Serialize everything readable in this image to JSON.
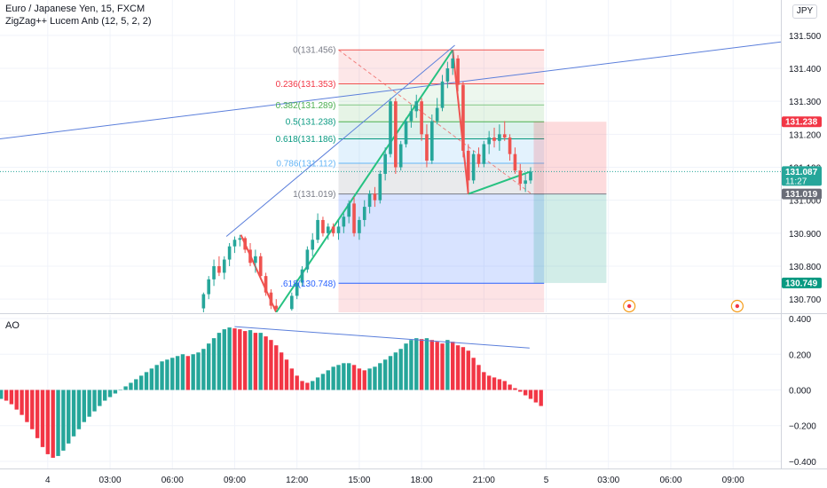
{
  "header": {
    "title": "Euro / Japanese Yen, 15, FXCM",
    "indicator": "ZigZag++ Lucem Anb (12, 5, 2, 2)",
    "currency": "JPY",
    "ao_label": "AO"
  },
  "chart_data": [
    {
      "type": "candlestick",
      "title": "Euro / Japanese Yen, 15, FXCM",
      "ylim": [
        130.66,
        131.54
      ],
      "y_ticks": [
        131.5,
        131.4,
        131.3,
        131.2,
        131.1,
        131.0,
        130.9,
        130.8,
        130.7
      ],
      "y_tick_labels": [
        "131.500",
        "131.400",
        "131.300",
        "131.200",
        "131.100",
        "131.000",
        "130.900",
        "130.800",
        "130.700"
      ],
      "x_ticks": [
        {
          "t": 0,
          "label": "4"
        },
        {
          "t": 3,
          "label": "03:00"
        },
        {
          "t": 6,
          "label": "06:00"
        },
        {
          "t": 9,
          "label": "09:00"
        },
        {
          "t": 12,
          "label": "12:00"
        },
        {
          "t": 15,
          "label": "15:00"
        },
        {
          "t": 18,
          "label": "18:00"
        },
        {
          "t": 21,
          "label": "21:00"
        },
        {
          "t": 24,
          "label": "5"
        },
        {
          "t": 27,
          "label": "03:00"
        },
        {
          "t": 30,
          "label": "06:00"
        },
        {
          "t": 33,
          "label": "09:00"
        }
      ],
      "xlim": [
        -2.3,
        35.3
      ],
      "candles": [
        {
          "t": 7.5,
          "o": 130.672,
          "h": 130.72,
          "l": 130.66,
          "c": 130.715
        },
        {
          "t": 7.75,
          "o": 130.715,
          "h": 130.77,
          "l": 130.7,
          "c": 130.76
        },
        {
          "t": 8.0,
          "o": 130.76,
          "h": 130.82,
          "l": 130.74,
          "c": 130.8
        },
        {
          "t": 8.25,
          "o": 130.8,
          "h": 130.83,
          "l": 130.77,
          "c": 130.78
        },
        {
          "t": 8.5,
          "o": 130.78,
          "h": 130.83,
          "l": 130.76,
          "c": 130.82
        },
        {
          "t": 8.75,
          "o": 130.82,
          "h": 130.87,
          "l": 130.8,
          "c": 130.86
        },
        {
          "t": 9.0,
          "o": 130.86,
          "h": 130.89,
          "l": 130.84,
          "c": 130.88
        },
        {
          "t": 9.25,
          "o": 130.88,
          "h": 130.895,
          "l": 130.86,
          "c": 130.885
        },
        {
          "t": 9.5,
          "o": 130.885,
          "h": 130.89,
          "l": 130.84,
          "c": 130.85
        },
        {
          "t": 9.75,
          "o": 130.85,
          "h": 130.87,
          "l": 130.8,
          "c": 130.81
        },
        {
          "t": 10.0,
          "o": 130.81,
          "h": 130.85,
          "l": 130.78,
          "c": 130.83
        },
        {
          "t": 10.25,
          "o": 130.83,
          "h": 130.84,
          "l": 130.76,
          "c": 130.77
        },
        {
          "t": 10.5,
          "o": 130.77,
          "h": 130.78,
          "l": 130.71,
          "c": 130.72
        },
        {
          "t": 10.75,
          "o": 130.72,
          "h": 130.73,
          "l": 130.67,
          "c": 130.68
        },
        {
          "t": 11.0,
          "o": 130.68,
          "h": 130.7,
          "l": 130.665,
          "c": 130.67
        },
        {
          "t": 11.75,
          "o": 130.67,
          "h": 130.72,
          "l": 130.665,
          "c": 130.71
        },
        {
          "t": 12.0,
          "o": 130.71,
          "h": 130.76,
          "l": 130.7,
          "c": 130.75
        },
        {
          "t": 12.25,
          "o": 130.75,
          "h": 130.8,
          "l": 130.74,
          "c": 130.79
        },
        {
          "t": 12.5,
          "o": 130.79,
          "h": 130.86,
          "l": 130.78,
          "c": 130.85
        },
        {
          "t": 12.75,
          "o": 130.85,
          "h": 130.9,
          "l": 130.83,
          "c": 130.88
        },
        {
          "t": 13.0,
          "o": 130.88,
          "h": 130.96,
          "l": 130.87,
          "c": 130.94
        },
        {
          "t": 13.25,
          "o": 130.94,
          "h": 130.95,
          "l": 130.89,
          "c": 130.9
        },
        {
          "t": 13.5,
          "o": 130.9,
          "h": 130.93,
          "l": 130.88,
          "c": 130.92
        },
        {
          "t": 13.75,
          "o": 130.92,
          "h": 130.93,
          "l": 130.89,
          "c": 130.9
        },
        {
          "t": 14.0,
          "o": 130.9,
          "h": 130.94,
          "l": 130.88,
          "c": 130.92
        },
        {
          "t": 14.25,
          "o": 130.92,
          "h": 130.96,
          "l": 130.9,
          "c": 130.95
        },
        {
          "t": 14.5,
          "o": 130.95,
          "h": 131.0,
          "l": 130.93,
          "c": 130.99
        },
        {
          "t": 14.75,
          "o": 130.99,
          "h": 131.01,
          "l": 130.89,
          "c": 130.9
        },
        {
          "t": 15.0,
          "o": 130.9,
          "h": 130.95,
          "l": 130.88,
          "c": 130.94
        },
        {
          "t": 15.25,
          "o": 130.94,
          "h": 131.0,
          "l": 130.92,
          "c": 130.98
        },
        {
          "t": 15.5,
          "o": 130.98,
          "h": 131.03,
          "l": 130.96,
          "c": 131.02
        },
        {
          "t": 15.75,
          "o": 131.02,
          "h": 131.04,
          "l": 130.98,
          "c": 131.0
        },
        {
          "t": 16.0,
          "o": 131.0,
          "h": 131.09,
          "l": 130.99,
          "c": 131.08
        },
        {
          "t": 16.25,
          "o": 131.08,
          "h": 131.16,
          "l": 131.06,
          "c": 131.14
        },
        {
          "t": 16.5,
          "o": 131.14,
          "h": 131.31,
          "l": 131.13,
          "c": 131.3
        },
        {
          "t": 16.75,
          "o": 131.3,
          "h": 131.31,
          "l": 131.08,
          "c": 131.1
        },
        {
          "t": 17.0,
          "o": 131.1,
          "h": 131.18,
          "l": 131.09,
          "c": 131.17
        },
        {
          "t": 17.25,
          "o": 131.17,
          "h": 131.25,
          "l": 131.16,
          "c": 131.24
        },
        {
          "t": 17.5,
          "o": 131.24,
          "h": 131.29,
          "l": 131.22,
          "c": 131.27
        },
        {
          "t": 17.75,
          "o": 131.27,
          "h": 131.32,
          "l": 131.25,
          "c": 131.3
        },
        {
          "t": 18.0,
          "o": 131.3,
          "h": 131.31,
          "l": 131.18,
          "c": 131.2
        },
        {
          "t": 18.25,
          "o": 131.2,
          "h": 131.23,
          "l": 131.1,
          "c": 131.12
        },
        {
          "t": 18.5,
          "o": 131.12,
          "h": 131.26,
          "l": 131.11,
          "c": 131.24
        },
        {
          "t": 18.75,
          "o": 131.24,
          "h": 131.31,
          "l": 131.23,
          "c": 131.28
        },
        {
          "t": 19.0,
          "o": 131.28,
          "h": 131.38,
          "l": 131.27,
          "c": 131.36
        },
        {
          "t": 19.25,
          "o": 131.36,
          "h": 131.42,
          "l": 131.34,
          "c": 131.4
        },
        {
          "t": 19.5,
          "o": 131.4,
          "h": 131.456,
          "l": 131.38,
          "c": 131.43
        },
        {
          "t": 19.75,
          "o": 131.43,
          "h": 131.44,
          "l": 131.33,
          "c": 131.35
        },
        {
          "t": 20.0,
          "o": 131.35,
          "h": 131.36,
          "l": 131.13,
          "c": 131.15
        },
        {
          "t": 20.25,
          "o": 131.15,
          "h": 131.17,
          "l": 131.019,
          "c": 131.06
        },
        {
          "t": 20.5,
          "o": 131.06,
          "h": 131.15,
          "l": 131.05,
          "c": 131.14
        },
        {
          "t": 20.75,
          "o": 131.14,
          "h": 131.16,
          "l": 131.1,
          "c": 131.11
        },
        {
          "t": 21.0,
          "o": 131.11,
          "h": 131.18,
          "l": 131.1,
          "c": 131.17
        },
        {
          "t": 21.25,
          "o": 131.17,
          "h": 131.21,
          "l": 131.14,
          "c": 131.19
        },
        {
          "t": 21.5,
          "o": 131.19,
          "h": 131.22,
          "l": 131.16,
          "c": 131.18
        },
        {
          "t": 21.75,
          "o": 131.18,
          "h": 131.23,
          "l": 131.15,
          "c": 131.2
        },
        {
          "t": 22.0,
          "o": 131.2,
          "h": 131.24,
          "l": 131.18,
          "c": 131.19
        },
        {
          "t": 22.25,
          "o": 131.19,
          "h": 131.2,
          "l": 131.12,
          "c": 131.14
        },
        {
          "t": 22.5,
          "o": 131.14,
          "h": 131.16,
          "l": 131.08,
          "c": 131.09
        },
        {
          "t": 22.75,
          "o": 131.09,
          "h": 131.11,
          "l": 131.03,
          "c": 131.05
        },
        {
          "t": 23.0,
          "o": 131.05,
          "h": 131.08,
          "l": 131.025,
          "c": 131.06
        },
        {
          "t": 23.25,
          "o": 131.06,
          "h": 131.1,
          "l": 131.05,
          "c": 131.087
        }
      ],
      "trend_lines": [
        {
          "name": "upper-trendline",
          "color": "#5b7fdb",
          "points": [
            [
              -2.3,
              131.186
            ],
            [
              35.3,
              131.48
            ]
          ]
        },
        {
          "name": "channel-line",
          "color": "#5b7fdb",
          "points": [
            [
              8.6,
              130.89
            ],
            [
              19.6,
              131.47
            ]
          ]
        }
      ],
      "zigzag": {
        "color": "#26c281",
        "points": [
          [
            9.3,
            130.895
          ],
          [
            11.0,
            130.66
          ],
          [
            19.5,
            131.456
          ],
          [
            20.25,
            131.019
          ],
          [
            23.25,
            131.087
          ]
        ],
        "down_color": "#ef5350"
      },
      "fib_retracement": {
        "start_t": 14.0,
        "end_t": 23.9,
        "levels": [
          {
            "ratio_label": "0(131.456)",
            "price": 131.456,
            "color": "#ef5350",
            "label_color": "#787b86"
          },
          {
            "ratio_label": "0.236(131.353)",
            "price": 131.353,
            "color": "#ef5350",
            "label_color": "#f23645"
          },
          {
            "ratio_label": "0.382(131.289)",
            "price": 131.289,
            "color": "#81c784",
            "label_color": "#4caf50"
          },
          {
            "ratio_label": "0.5(131.238)",
            "price": 131.238,
            "color": "#4caf50",
            "label_color": "#089981"
          },
          {
            "ratio_label": "0.618(131.186)",
            "price": 131.186,
            "color": "#089981",
            "label_color": "#089981"
          },
          {
            "ratio_label": "0.786(131.112)",
            "price": 131.112,
            "color": "#64b5f6",
            "label_color": "#64b5f6"
          },
          {
            "ratio_label": "1(131.019)",
            "price": 131.019,
            "color": "#787b86",
            "label_color": "#787b86"
          },
          {
            "ratio_label": ".618(130.748)",
            "price": 130.748,
            "color": "#2962ff",
            "label_color": "#2962ff"
          }
        ],
        "bands": [
          {
            "from": 131.456,
            "to": 131.353,
            "color": "rgba(242,54,69,0.12)"
          },
          {
            "from": 131.353,
            "to": 131.289,
            "color": "rgba(129,199,132,0.14)"
          },
          {
            "from": 131.289,
            "to": 131.238,
            "color": "rgba(76,175,80,0.14)"
          },
          {
            "from": 131.238,
            "to": 131.186,
            "color": "rgba(8,153,129,0.14)"
          },
          {
            "from": 131.186,
            "to": 131.112,
            "color": "rgba(100,181,246,0.18)"
          },
          {
            "from": 131.112,
            "to": 131.019,
            "color": "rgba(120,123,134,0.16)"
          },
          {
            "from": 131.019,
            "to": 130.748,
            "color": "rgba(41,98,255,0.18)"
          },
          {
            "from": 130.748,
            "to": 130.66,
            "color": "rgba(242,54,69,0.14)"
          }
        ]
      },
      "position_tool": {
        "start_t": 23.4,
        "end_t": 26.9,
        "entry": 131.019,
        "stop": 131.238,
        "target": 130.749,
        "stop_color": "rgba(242,54,69,0.18)",
        "target_color": "rgba(8,153,129,0.18)"
      },
      "current_price": {
        "value": 131.087,
        "label": "131.087",
        "countdown": "11:27",
        "color": "#26a69a"
      },
      "price_tags": [
        {
          "value": 131.238,
          "label": "131.238",
          "color": "#f23645"
        },
        {
          "value": 131.019,
          "label": "131.019",
          "color": "#6a6d78"
        },
        {
          "value": 130.749,
          "label": "130.749",
          "color": "#089981"
        }
      ],
      "event_markers": [
        {
          "t": 28.0
        },
        {
          "t": 33.2
        }
      ]
    },
    {
      "type": "bar",
      "title": "AO",
      "ylim": [
        -0.44,
        0.42
      ],
      "y_ticks": [
        0.4,
        0.2,
        0.0,
        -0.2,
        -0.4
      ],
      "y_tick_labels": [
        "0.400",
        "0.200",
        "0.000",
        "−0.200",
        "−0.400"
      ],
      "up_color": "#26a69a",
      "down_color": "#f23645",
      "bar_start_t": -2.25,
      "bar_step_t": 0.25,
      "values": [
        -0.05,
        -0.06,
        -0.08,
        -0.11,
        -0.14,
        -0.18,
        -0.22,
        -0.27,
        -0.32,
        -0.36,
        -0.38,
        -0.37,
        -0.34,
        -0.3,
        -0.26,
        -0.22,
        -0.18,
        -0.15,
        -0.12,
        -0.09,
        -0.06,
        -0.04,
        -0.02,
        0.0,
        0.02,
        0.04,
        0.06,
        0.08,
        0.1,
        0.12,
        0.14,
        0.16,
        0.17,
        0.18,
        0.19,
        0.2,
        0.19,
        0.2,
        0.21,
        0.23,
        0.26,
        0.29,
        0.32,
        0.34,
        0.35,
        0.345,
        0.34,
        0.33,
        0.335,
        0.32,
        0.32,
        0.3,
        0.28,
        0.25,
        0.21,
        0.17,
        0.12,
        0.08,
        0.05,
        0.04,
        0.05,
        0.07,
        0.09,
        0.11,
        0.13,
        0.14,
        0.15,
        0.15,
        0.14,
        0.12,
        0.11,
        0.12,
        0.13,
        0.15,
        0.17,
        0.19,
        0.21,
        0.23,
        0.26,
        0.28,
        0.29,
        0.285,
        0.29,
        0.28,
        0.27,
        0.26,
        0.28,
        0.27,
        0.25,
        0.24,
        0.22,
        0.18,
        0.14,
        0.1,
        0.08,
        0.07,
        0.06,
        0.05,
        0.03,
        0.01,
        -0.01,
        -0.03,
        -0.05,
        -0.07,
        -0.09
      ],
      "divergence_line": {
        "color": "#5b7fdb",
        "points": [
          [
            9.0,
            0.355
          ],
          [
            23.2,
            0.235
          ]
        ]
      }
    }
  ]
}
